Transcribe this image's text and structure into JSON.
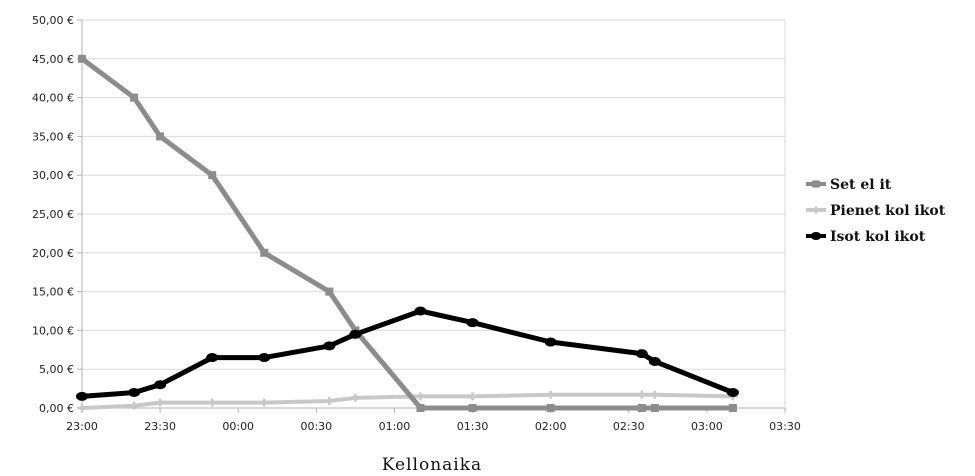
{
  "chart_data": {
    "type": "line",
    "title": "",
    "xlabel": "Kellonaika",
    "ylabel": "",
    "x_tick_labels": [
      "23:00",
      "23:30",
      "00:00",
      "00:30",
      "01:00",
      "01:30",
      "02:00",
      "02:30",
      "03:00",
      "03:30"
    ],
    "xlim": [
      "23:00",
      "03:30"
    ],
    "y_tick_labels": [
      "0,00 €",
      "5,00 €",
      "10,00 €",
      "15,00 €",
      "20,00 €",
      "25,00 €",
      "30,00 €",
      "35,00 €",
      "40,00 €",
      "45,00 €",
      "50,00 €"
    ],
    "ylim": [
      0,
      50
    ],
    "grid": "horizontal",
    "legend_position": "right",
    "series": [
      {
        "name": "Set el it",
        "color": "#8c8c8c",
        "marker": "square",
        "points": [
          {
            "x": "23:00",
            "y": 45
          },
          {
            "x": "23:20",
            "y": 40
          },
          {
            "x": "23:30",
            "y": 35
          },
          {
            "x": "23:50",
            "y": 30
          },
          {
            "x": "00:10",
            "y": 20
          },
          {
            "x": "00:35",
            "y": 15
          },
          {
            "x": "00:45",
            "y": 10
          },
          {
            "x": "01:10",
            "y": 0
          },
          {
            "x": "01:30",
            "y": 0
          },
          {
            "x": "02:00",
            "y": 0
          },
          {
            "x": "02:35",
            "y": 0
          },
          {
            "x": "02:40",
            "y": 0
          },
          {
            "x": "03:10",
            "y": 0
          }
        ]
      },
      {
        "name": "Pienet kol ikot",
        "color": "#c8c8c8",
        "marker": "cross",
        "points": [
          {
            "x": "23:00",
            "y": 0
          },
          {
            "x": "23:20",
            "y": 0.3
          },
          {
            "x": "23:30",
            "y": 0.7
          },
          {
            "x": "23:50",
            "y": 0.7
          },
          {
            "x": "00:10",
            "y": 0.7
          },
          {
            "x": "00:35",
            "y": 0.9
          },
          {
            "x": "00:45",
            "y": 1.3
          },
          {
            "x": "01:10",
            "y": 1.5
          },
          {
            "x": "01:30",
            "y": 1.5
          },
          {
            "x": "02:00",
            "y": 1.7
          },
          {
            "x": "02:35",
            "y": 1.7
          },
          {
            "x": "02:40",
            "y": 1.7
          },
          {
            "x": "03:10",
            "y": 1.5
          }
        ]
      },
      {
        "name": "Isot kol ikot",
        "color": "#000000",
        "marker": "circle",
        "points": [
          {
            "x": "23:00",
            "y": 1.5
          },
          {
            "x": "23:20",
            "y": 2
          },
          {
            "x": "23:30",
            "y": 3
          },
          {
            "x": "23:50",
            "y": 6.5
          },
          {
            "x": "00:10",
            "y": 6.5
          },
          {
            "x": "00:35",
            "y": 8
          },
          {
            "x": "00:45",
            "y": 9.5
          },
          {
            "x": "01:10",
            "y": 12.5
          },
          {
            "x": "01:30",
            "y": 11
          },
          {
            "x": "02:00",
            "y": 8.5
          },
          {
            "x": "02:35",
            "y": 7
          },
          {
            "x": "02:40",
            "y": 6
          },
          {
            "x": "03:10",
            "y": 2
          }
        ]
      }
    ]
  }
}
